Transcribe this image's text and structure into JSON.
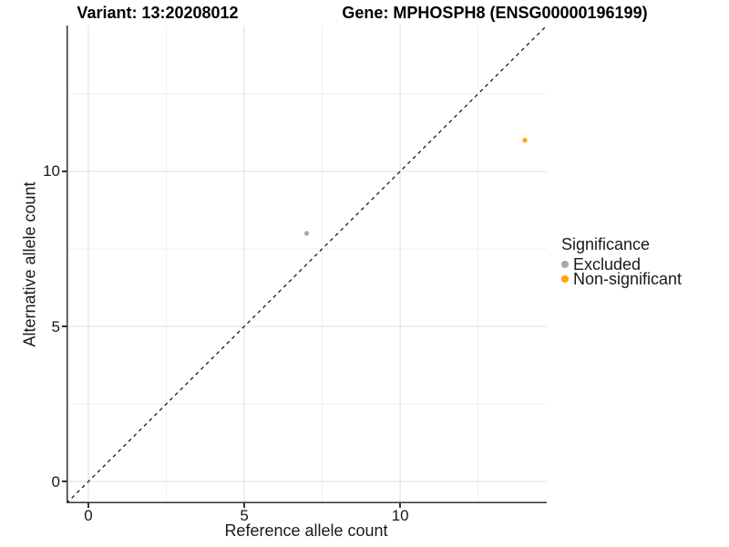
{
  "chart_data": {
    "type": "scatter",
    "titles": {
      "left": "Variant: 13:20208012",
      "right": "Gene: MPHOSPH8 (ENSG00000196199)"
    },
    "xlabel": "Reference allele count",
    "ylabel": "Alternative allele count",
    "xlim": [
      -0.7,
      14.7
    ],
    "ylim": [
      -0.7,
      14.7
    ],
    "xticks": [
      0,
      5,
      10
    ],
    "yticks": [
      0,
      5,
      10
    ],
    "x_minor_gridlines": [
      2.5,
      7.5,
      12.5
    ],
    "y_minor_gridlines": [
      2.5,
      7.5,
      12.5
    ],
    "grid": "major and minor, light gray on white",
    "identity_line": {
      "style": "dashed",
      "equation": "y = x",
      "color": "#1a1a1a"
    },
    "series": [
      {
        "name": "Excluded",
        "color": "#A8A8A8",
        "points": [
          [
            7,
            8
          ]
        ]
      },
      {
        "name": "Non-significant",
        "color": "#FFA500",
        "points": [
          [
            14,
            11
          ]
        ]
      }
    ],
    "legend": {
      "title": "Significance",
      "position": "right"
    }
  },
  "style_colors": {
    "major_grid": "#E3E3E3",
    "minor_grid": "#EFEFEF",
    "axis_line": "#333333",
    "text": "#1a1a1a"
  }
}
